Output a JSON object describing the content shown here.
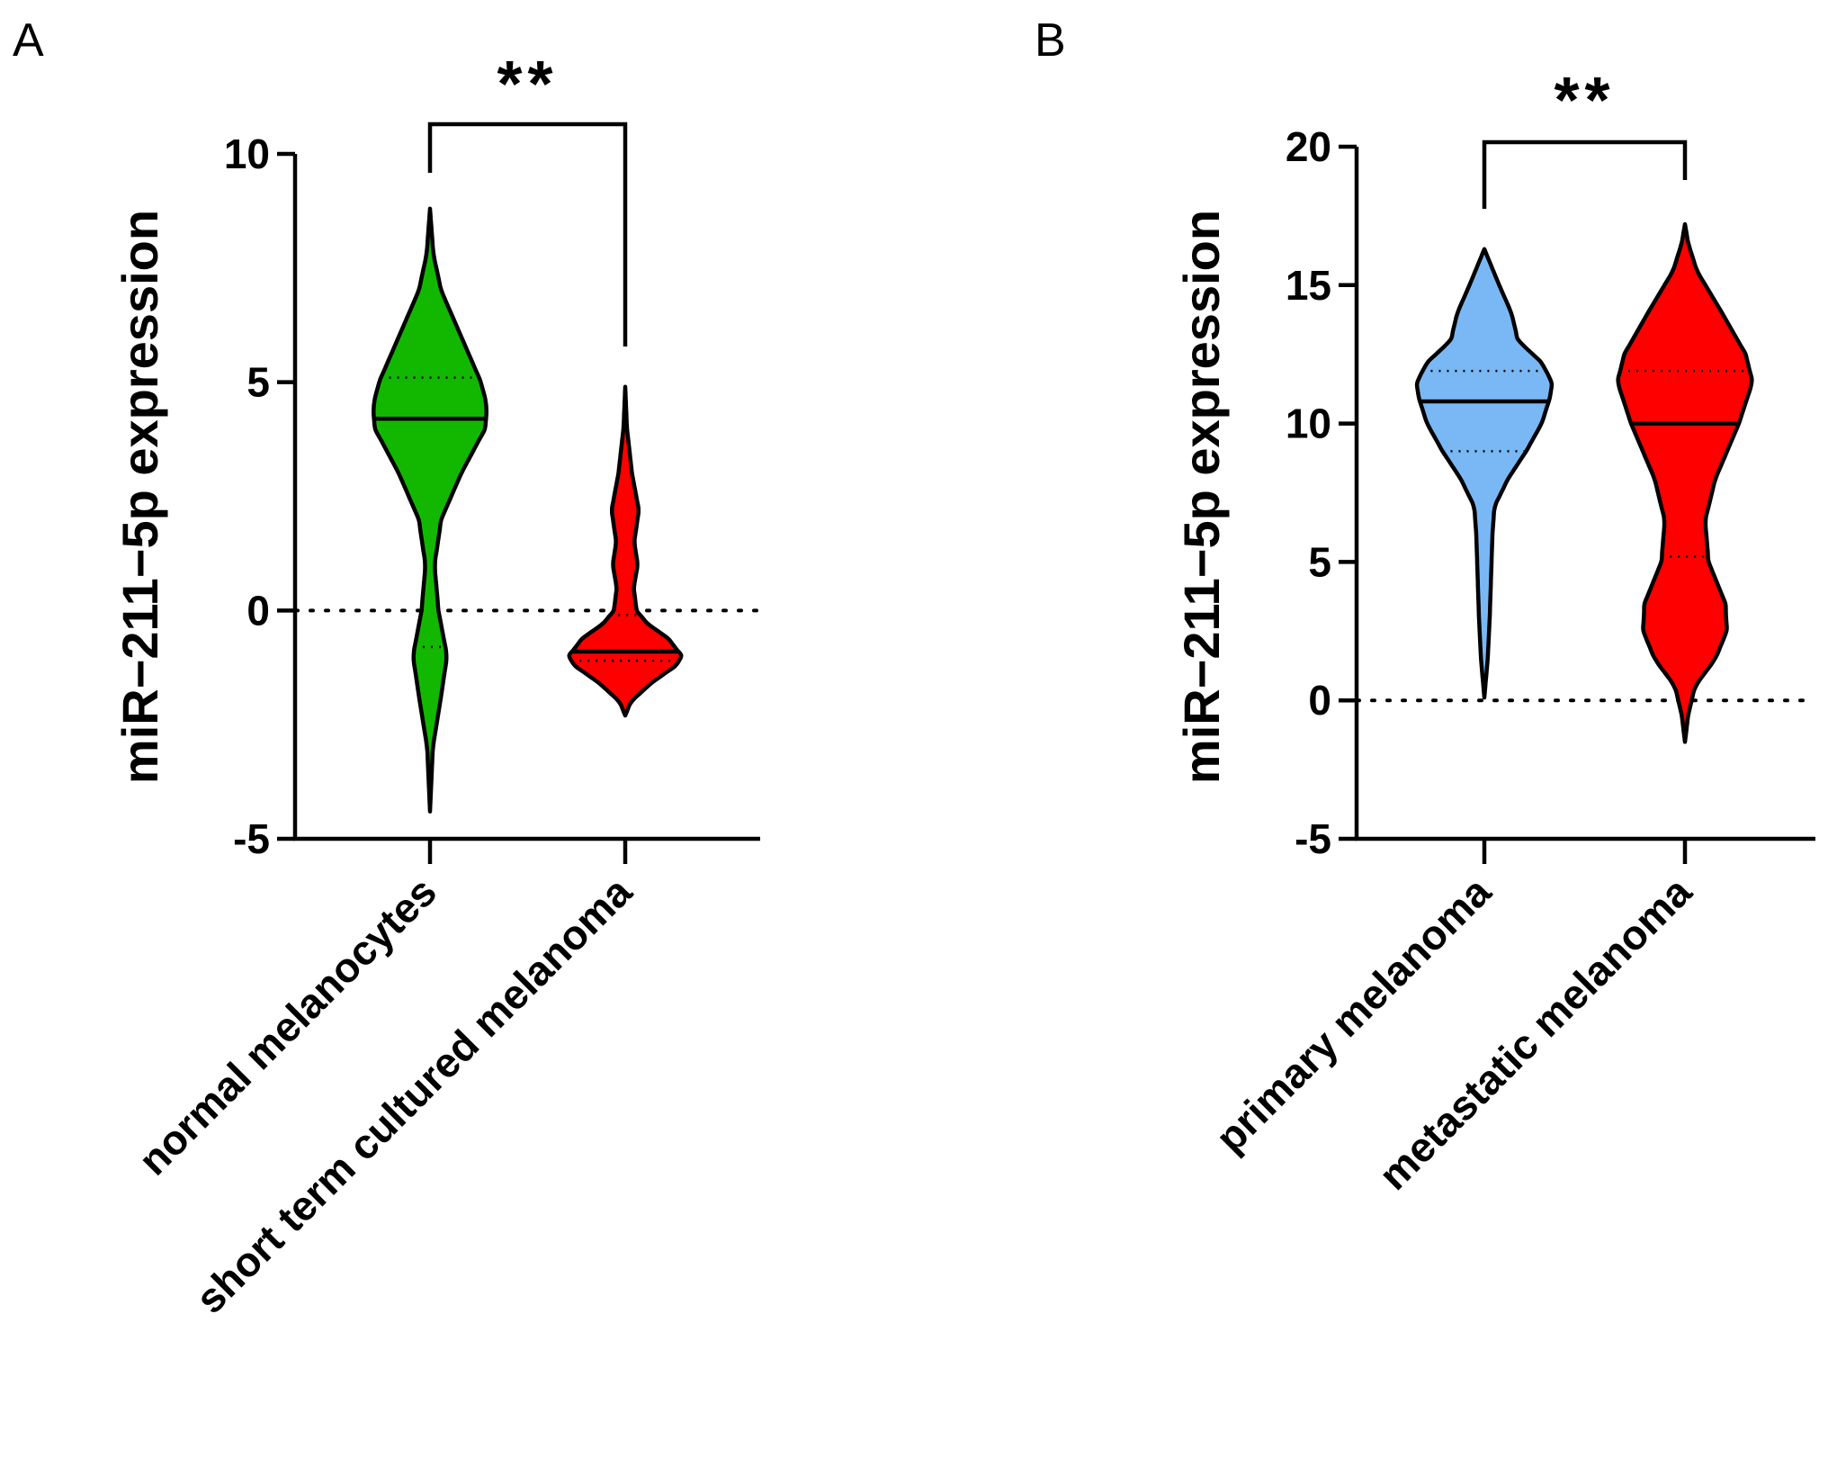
{
  "chart_data": [
    {
      "panel": "A",
      "type": "violin",
      "title": "",
      "xlabel": "",
      "ylabel": "miR−211−5p expression",
      "ylim": [
        -5,
        10
      ],
      "yticks": [
        10,
        5,
        0,
        -5
      ],
      "ytick_labels": [
        "10",
        "5",
        "0",
        "-5"
      ],
      "reference_line": 0,
      "categories": [
        "normal melanocytes",
        "short term cultured melanoma"
      ],
      "series": [
        {
          "name": "normal melanocytes",
          "color": "#12b800",
          "range": [
            -4.4,
            8.8
          ],
          "median": 4.2,
          "quartiles": [
            -0.8,
            5.1
          ],
          "density": [
            [
              -4.4,
              0.0
            ],
            [
              -3.0,
              0.05
            ],
            [
              -2.0,
              0.18
            ],
            [
              -1.0,
              0.3
            ],
            [
              0.0,
              0.15
            ],
            [
              1.0,
              0.08
            ],
            [
              2.0,
              0.2
            ],
            [
              3.0,
              0.55
            ],
            [
              4.0,
              0.98
            ],
            [
              4.5,
              1.0
            ],
            [
              5.0,
              0.9
            ],
            [
              6.0,
              0.55
            ],
            [
              7.0,
              0.2
            ],
            [
              7.8,
              0.06
            ],
            [
              8.8,
              0.0
            ]
          ]
        },
        {
          "name": "short term cultured melanoma",
          "color": "#ff0000",
          "range": [
            -2.3,
            4.9
          ],
          "median": -0.9,
          "quartiles": [
            -1.1,
            -0.1
          ],
          "density": [
            [
              -2.3,
              0.0
            ],
            [
              -2.0,
              0.1
            ],
            [
              -1.6,
              0.45
            ],
            [
              -1.2,
              0.9
            ],
            [
              -1.0,
              1.0
            ],
            [
              -0.6,
              0.75
            ],
            [
              -0.3,
              0.4
            ],
            [
              0.0,
              0.2
            ],
            [
              0.5,
              0.15
            ],
            [
              1.0,
              0.22
            ],
            [
              1.5,
              0.16
            ],
            [
              2.2,
              0.24
            ],
            [
              3.0,
              0.12
            ],
            [
              4.0,
              0.03
            ],
            [
              4.9,
              0.0
            ]
          ]
        }
      ],
      "significance": {
        "label": "**",
        "between": [
          0,
          1
        ]
      }
    },
    {
      "panel": "B",
      "type": "violin",
      "title": "",
      "xlabel": "",
      "ylabel": "miR−211−5p expression",
      "ylim": [
        -5,
        20
      ],
      "yticks": [
        20,
        15,
        10,
        5,
        0,
        -5
      ],
      "ytick_labels": [
        "20",
        "15",
        "10",
        "5",
        "0",
        "-5"
      ],
      "reference_line": 0,
      "categories": [
        "primary melanoma",
        "metastatic melanoma"
      ],
      "series": [
        {
          "name": "primary melanoma",
          "color": "#7ab8f5",
          "range": [
            0.1,
            16.3
          ],
          "median": 10.8,
          "quartiles": [
            9.0,
            11.9
          ],
          "density": [
            [
              0.1,
              0.0
            ],
            [
              1.5,
              0.05
            ],
            [
              3.0,
              0.08
            ],
            [
              4.5,
              0.1
            ],
            [
              6.0,
              0.12
            ],
            [
              7.0,
              0.15
            ],
            [
              8.0,
              0.35
            ],
            [
              9.0,
              0.62
            ],
            [
              10.0,
              0.85
            ],
            [
              11.0,
              0.98
            ],
            [
              11.5,
              1.0
            ],
            [
              12.2,
              0.85
            ],
            [
              13.0,
              0.5
            ],
            [
              14.0,
              0.4
            ],
            [
              15.0,
              0.22
            ],
            [
              16.3,
              0.0
            ]
          ]
        },
        {
          "name": "metastatic melanoma",
          "color": "#ff0000",
          "range": [
            -1.5,
            17.2
          ],
          "median": 10.0,
          "quartiles": [
            5.2,
            11.9
          ],
          "density": [
            [
              -1.5,
              0.0
            ],
            [
              -0.5,
              0.05
            ],
            [
              0.5,
              0.15
            ],
            [
              1.5,
              0.45
            ],
            [
              2.5,
              0.62
            ],
            [
              3.5,
              0.6
            ],
            [
              5.0,
              0.35
            ],
            [
              6.5,
              0.3
            ],
            [
              8.0,
              0.45
            ],
            [
              10.0,
              0.8
            ],
            [
              11.5,
              1.0
            ],
            [
              12.5,
              0.9
            ],
            [
              14.0,
              0.55
            ],
            [
              15.5,
              0.18
            ],
            [
              16.5,
              0.05
            ],
            [
              17.2,
              0.0
            ]
          ]
        }
      ],
      "significance": {
        "label": "**",
        "between": [
          0,
          1
        ]
      }
    }
  ]
}
